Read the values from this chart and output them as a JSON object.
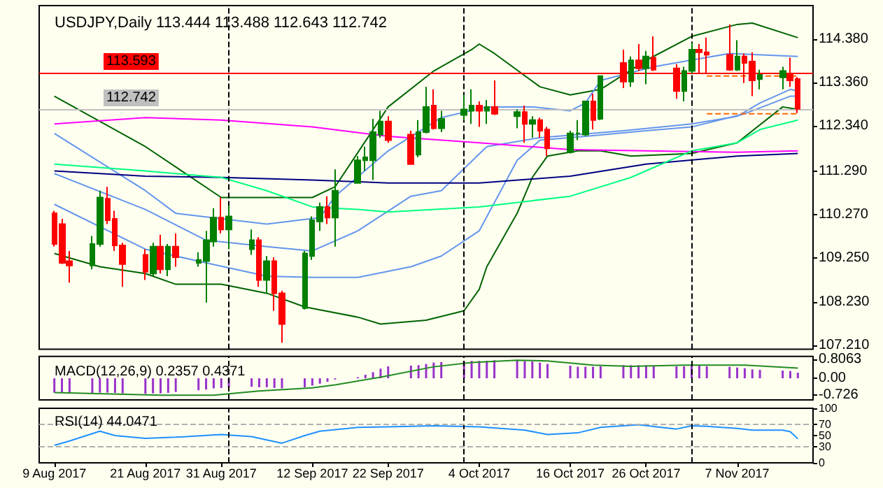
{
  "chart_data": [
    {
      "type": "candlestick",
      "title": "USDJPY,Daily 113.444 113.488 112.643 112.742",
      "x": [
        "2017-08-09",
        "2017-08-10",
        "2017-08-11",
        "2017-08-14",
        "2017-08-15",
        "2017-08-16",
        "2017-08-17",
        "2017-08-18",
        "2017-08-21",
        "2017-08-22",
        "2017-08-23",
        "2017-08-24",
        "2017-08-25",
        "2017-08-28",
        "2017-08-29",
        "2017-08-30",
        "2017-08-31",
        "2017-09-01",
        "2017-09-04",
        "2017-09-05",
        "2017-09-06",
        "2017-09-07",
        "2017-09-08",
        "2017-09-11",
        "2017-09-12",
        "2017-09-13",
        "2017-09-14",
        "2017-09-15",
        "2017-09-18",
        "2017-09-19",
        "2017-09-20",
        "2017-09-21",
        "2017-09-22",
        "2017-09-25",
        "2017-09-26",
        "2017-09-27",
        "2017-09-28",
        "2017-09-29",
        "2017-10-02",
        "2017-10-03",
        "2017-10-04",
        "2017-10-05",
        "2017-10-06",
        "2017-10-09",
        "2017-10-10",
        "2017-10-11",
        "2017-10-12",
        "2017-10-13",
        "2017-10-16",
        "2017-10-17",
        "2017-10-18",
        "2017-10-19",
        "2017-10-20",
        "2017-10-23",
        "2017-10-24",
        "2017-10-25",
        "2017-10-26",
        "2017-10-27",
        "2017-10-30",
        "2017-10-31",
        "2017-11-01",
        "2017-11-02",
        "2017-11-03",
        "2017-11-06",
        "2017-11-07",
        "2017-11-08",
        "2017-11-09",
        "2017-11-10",
        "2017-11-13",
        "2017-11-14",
        "2017-11-15"
      ],
      "ohlc": [
        [
          110.3,
          110.36,
          109.52,
          109.58
        ],
        [
          110.05,
          110.17,
          109.11,
          109.14
        ],
        [
          109.18,
          109.42,
          108.68,
          109.08
        ],
        [
          109.08,
          109.77,
          108.99,
          109.58
        ],
        [
          109.58,
          110.83,
          109.52,
          110.67
        ],
        [
          110.64,
          110.92,
          110.05,
          110.14
        ],
        [
          110.17,
          110.36,
          109.42,
          109.55
        ],
        [
          109.55,
          109.61,
          108.58,
          109.11
        ],
        [
          109.33,
          109.46,
          108.74,
          108.93
        ],
        [
          108.89,
          109.61,
          108.83,
          109.52
        ],
        [
          109.52,
          109.8,
          108.89,
          108.99
        ],
        [
          108.99,
          109.58,
          108.83,
          109.52
        ],
        [
          109.52,
          109.83,
          109.05,
          109.27
        ],
        [
          109.14,
          109.39,
          109.05,
          109.21
        ],
        [
          109.18,
          109.89,
          108.21,
          109.67
        ],
        [
          109.64,
          110.42,
          109.52,
          110.2
        ],
        [
          110.2,
          110.67,
          109.83,
          109.92
        ],
        [
          109.92,
          110.48,
          109.46,
          110.23
        ],
        [
          109.46,
          109.92,
          109.33,
          109.67
        ],
        [
          109.67,
          109.74,
          108.58,
          108.74
        ],
        [
          108.74,
          109.3,
          108.43,
          109.18
        ],
        [
          109.18,
          109.27,
          108.02,
          108.43
        ],
        [
          108.43,
          108.49,
          107.27,
          107.71
        ],
        [
          108.08,
          109.42,
          108.05,
          109.36
        ],
        [
          109.3,
          110.23,
          109.21,
          110.14
        ],
        [
          110.11,
          110.55,
          109.89,
          110.45
        ],
        [
          110.45,
          110.7,
          110.05,
          110.2
        ],
        [
          110.2,
          111.33,
          109.52,
          110.83
        ],
        [
          111.01,
          111.64,
          111.01,
          111.54
        ],
        [
          111.54,
          111.86,
          111.29,
          111.61
        ],
        [
          111.54,
          112.51,
          111.08,
          112.2
        ],
        [
          112.14,
          112.7,
          112.07,
          112.45
        ],
        [
          112.45,
          112.57,
          111.95,
          112.01
        ],
        [
          112.14,
          112.23,
          111.45,
          111.45
        ],
        [
          111.67,
          112.48,
          111.61,
          112.2
        ],
        [
          112.2,
          113.26,
          112.17,
          112.79
        ],
        [
          112.82,
          113.2,
          112.26,
          112.29
        ],
        [
          112.29,
          112.7,
          112.2,
          112.51
        ],
        [
          112.6,
          113.07,
          112.48,
          112.73
        ],
        [
          112.7,
          113.2,
          112.39,
          112.82
        ],
        [
          112.82,
          112.92,
          112.32,
          112.7
        ],
        [
          112.7,
          112.95,
          112.39,
          112.79
        ],
        [
          112.79,
          113.41,
          112.6,
          112.63
        ],
        [
          112.57,
          112.73,
          112.29,
          112.67
        ],
        [
          112.67,
          112.82,
          111.95,
          112.39
        ],
        [
          112.39,
          112.57,
          112.07,
          112.48
        ],
        [
          112.48,
          112.54,
          112.07,
          112.23
        ],
        [
          112.26,
          112.32,
          111.64,
          111.82
        ],
        [
          111.73,
          112.23,
          111.7,
          112.17
        ],
        [
          112.17,
          112.48,
          112.01,
          112.17
        ],
        [
          112.14,
          112.92,
          112.1,
          112.92
        ],
        [
          112.92,
          113.1,
          112.26,
          112.48
        ],
        [
          112.51,
          113.51,
          112.48,
          113.51
        ],
        [
          113.82,
          114.13,
          113.23,
          113.38
        ],
        [
          113.38,
          113.97,
          113.26,
          113.88
        ],
        [
          113.88,
          114.26,
          113.63,
          113.69
        ],
        [
          113.69,
          114.1,
          113.32,
          113.97
        ],
        [
          113.94,
          114.44,
          113.63,
          113.66
        ],
        [
          113.69,
          113.79,
          112.98,
          113.16
        ],
        [
          113.16,
          113.73,
          112.92,
          113.63
        ],
        [
          113.63,
          114.29,
          113.57,
          114.13
        ],
        [
          114.13,
          114.26,
          113.57,
          114.07
        ],
        [
          114.07,
          114.41,
          113.57,
          114.01
        ],
        [
          114.01,
          114.72,
          113.63,
          113.66
        ],
        [
          113.66,
          114.35,
          113.63,
          113.97
        ],
        [
          113.97,
          114.04,
          113.35,
          113.82
        ],
        [
          113.85,
          114.07,
          113.04,
          113.41
        ],
        [
          113.44,
          113.66,
          113.2,
          113.54
        ],
        [
          113.48,
          113.73,
          113.2,
          113.63
        ],
        [
          113.57,
          113.94,
          113.26,
          113.41
        ],
        [
          113.444,
          113.488,
          112.643,
          112.742
        ]
      ],
      "series": [
        {
          "type": "line",
          "color": "#006400",
          "x": [
            "2017-08-09",
            "2017-08-21",
            "2017-08-31",
            "2017-09-12",
            "2017-09-15",
            "2017-09-22",
            "2017-09-28",
            "2017-10-03",
            "2017-10-04",
            "2017-10-06",
            "2017-10-12",
            "2017-10-16",
            "2017-10-20",
            "2017-10-26",
            "2017-11-01",
            "2017-11-07",
            "2017-11-09",
            "2017-11-15"
          ],
          "values": [
            113.04,
            111.86,
            110.67,
            110.67,
            110.92,
            112.79,
            113.63,
            114.13,
            114.26,
            114.04,
            113.26,
            113.07,
            113.2,
            113.88,
            114.44,
            114.72,
            114.75,
            114.41
          ]
        },
        {
          "type": "line",
          "color": "#006400",
          "x": [
            "2017-08-09",
            "2017-08-15",
            "2017-08-21",
            "2017-08-25",
            "2017-08-31",
            "2017-09-06",
            "2017-09-11",
            "2017-09-18",
            "2017-09-21",
            "2017-09-27",
            "2017-10-02",
            "2017-10-04",
            "2017-10-05",
            "2017-10-09",
            "2017-10-11",
            "2017-10-13",
            "2017-10-17",
            "2017-10-20",
            "2017-10-24",
            "2017-11-01",
            "2017-11-07",
            "2017-11-13",
            "2017-11-15"
          ],
          "values": [
            109.36,
            109.05,
            108.89,
            108.64,
            108.64,
            108.43,
            108.11,
            107.87,
            107.71,
            107.8,
            108.02,
            108.52,
            109.05,
            110.3,
            111.14,
            111.64,
            111.76,
            111.76,
            111.64,
            111.7,
            111.95,
            112.79,
            112.73
          ]
        },
        {
          "type": "line",
          "color": "#6495ed",
          "x": [
            "2017-08-09",
            "2017-08-21",
            "2017-08-25",
            "2017-09-06",
            "2017-09-13",
            "2017-09-15",
            "2017-09-22",
            "2017-09-29",
            "2017-10-05",
            "2017-10-11",
            "2017-10-16",
            "2017-10-18",
            "2017-10-20",
            "2017-10-27",
            "2017-11-06",
            "2017-11-15"
          ],
          "values": [
            112.17,
            110.83,
            110.3,
            110.05,
            110.2,
            110.7,
            111.76,
            112.54,
            112.79,
            112.79,
            112.7,
            112.88,
            113.41,
            113.73,
            114.04,
            113.97
          ]
        },
        {
          "type": "line",
          "color": "#6495ed",
          "x": [
            "2017-08-09",
            "2017-08-21",
            "2017-08-29",
            "2017-09-06",
            "2017-09-12",
            "2017-09-18",
            "2017-09-25",
            "2017-09-29",
            "2017-10-05",
            "2017-10-12",
            "2017-10-23",
            "2017-11-01",
            "2017-11-07",
            "2017-11-10",
            "2017-11-14",
            "2017-11-15"
          ],
          "values": [
            111.23,
            110.39,
            109.67,
            109.52,
            109.42,
            109.89,
            110.7,
            110.83,
            111.86,
            112.07,
            112.23,
            112.39,
            112.57,
            112.88,
            113.2,
            113.16
          ]
        },
        {
          "type": "line",
          "color": "#6495ed",
          "x": [
            "2017-08-09",
            "2017-08-21",
            "2017-08-29",
            "2017-09-06",
            "2017-09-12",
            "2017-09-18",
            "2017-09-25",
            "2017-09-29",
            "2017-10-04",
            "2017-10-09",
            "2017-10-12",
            "2017-10-18",
            "2017-10-26",
            "2017-11-01",
            "2017-11-08",
            "2017-11-14",
            "2017-11-15"
          ],
          "values": [
            110.51,
            109.46,
            109.14,
            108.83,
            108.8,
            108.8,
            109.05,
            109.3,
            109.89,
            111.54,
            112.01,
            112.1,
            112.23,
            112.32,
            112.63,
            113.04,
            113.04
          ]
        },
        {
          "type": "line",
          "color": "#ff00ff",
          "x": [
            "2017-08-09",
            "2017-08-21",
            "2017-08-31",
            "2017-09-12",
            "2017-09-22",
            "2017-10-04",
            "2017-10-16",
            "2017-10-26",
            "2017-11-07",
            "2017-11-15"
          ],
          "values": [
            112.39,
            112.54,
            112.48,
            112.32,
            112.1,
            111.95,
            111.79,
            111.76,
            111.73,
            111.76
          ]
        },
        {
          "type": "line",
          "color": "#000080",
          "x": [
            "2017-08-09",
            "2017-08-21",
            "2017-08-31",
            "2017-09-12",
            "2017-09-22",
            "2017-10-04",
            "2017-10-16",
            "2017-10-26",
            "2017-11-07",
            "2017-11-15"
          ],
          "values": [
            111.29,
            111.17,
            111.14,
            111.08,
            111.01,
            111.01,
            111.17,
            111.45,
            111.64,
            111.7
          ]
        },
        {
          "type": "line",
          "color": "#00ff7f",
          "x": [
            "2017-08-09",
            "2017-08-21",
            "2017-08-31",
            "2017-09-06",
            "2017-09-12",
            "2017-09-18",
            "2017-09-22",
            "2017-10-04",
            "2017-10-16",
            "2017-10-24",
            "2017-11-01",
            "2017-11-07",
            "2017-11-10",
            "2017-11-15"
          ],
          "values": [
            111.45,
            111.29,
            111.14,
            110.83,
            110.45,
            110.39,
            110.33,
            110.45,
            110.7,
            111.14,
            111.76,
            111.95,
            112.26,
            112.48
          ]
        },
        {
          "type": "line",
          "color": "#ff6600",
          "line_style": "dashed",
          "x": [
            "2017-11-03",
            "2017-11-15"
          ],
          "values": [
            113.51,
            113.51
          ]
        },
        {
          "type": "line",
          "color": "#ff6600",
          "line_style": "dashed",
          "x": [
            "2017-11-03",
            "2017-11-15"
          ],
          "values": [
            112.63,
            112.63
          ]
        }
      ],
      "xlim": [
        "2017-08-07",
        "2017-11-17"
      ],
      "ylim": [
        107.12,
        115.16
      ],
      "yticks": [
        {
          "value": 107.21,
          "label": "107.210"
        },
        {
          "value": 108.23,
          "label": "108.230"
        },
        {
          "value": 109.25,
          "label": "109.250"
        },
        {
          "value": 110.27,
          "label": "110.270"
        },
        {
          "value": 111.29,
          "label": "111.290"
        },
        {
          "value": 112.34,
          "label": "112.340"
        },
        {
          "value": 113.36,
          "label": "113.360"
        },
        {
          "value": 114.38,
          "label": "114.380"
        }
      ],
      "tick_labels": "y",
      "ref_lines": [
        {
          "axis": "x",
          "value": "2017-09-01",
          "color": "#000000",
          "line_style": "dashed"
        },
        {
          "axis": "x",
          "value": "2017-10-02",
          "color": "#000000",
          "line_style": "dashed"
        },
        {
          "axis": "x",
          "value": "2017-11-01",
          "color": "#000000",
          "line_style": "dashed"
        },
        {
          "axis": "y",
          "value": 113.593,
          "label": "113.593",
          "color": "#ff0000"
        },
        {
          "axis": "y",
          "value": 112.742,
          "label": "112.742",
          "color": "#c0c0c0"
        }
      ]
    },
    {
      "type": "bar",
      "title": "MACD(12,26,9) 0.2357 0.4371",
      "x": [
        "2017-08-09",
        "2017-08-10",
        "2017-08-11",
        "2017-08-14",
        "2017-08-15",
        "2017-08-16",
        "2017-08-17",
        "2017-08-18",
        "2017-08-21",
        "2017-08-22",
        "2017-08-23",
        "2017-08-24",
        "2017-08-25",
        "2017-08-28",
        "2017-08-29",
        "2017-08-30",
        "2017-08-31",
        "2017-09-01",
        "2017-09-04",
        "2017-09-05",
        "2017-09-06",
        "2017-09-07",
        "2017-09-08",
        "2017-09-11",
        "2017-09-12",
        "2017-09-13",
        "2017-09-14",
        "2017-09-15",
        "2017-09-18",
        "2017-09-19",
        "2017-09-20",
        "2017-09-21",
        "2017-09-22",
        "2017-09-25",
        "2017-09-26",
        "2017-09-27",
        "2017-09-28",
        "2017-09-29",
        "2017-10-02",
        "2017-10-03",
        "2017-10-04",
        "2017-10-05",
        "2017-10-06",
        "2017-10-09",
        "2017-10-10",
        "2017-10-11",
        "2017-10-12",
        "2017-10-13",
        "2017-10-16",
        "2017-10-17",
        "2017-10-18",
        "2017-10-19",
        "2017-10-20",
        "2017-10-23",
        "2017-10-24",
        "2017-10-25",
        "2017-10-26",
        "2017-10-27",
        "2017-10-30",
        "2017-10-31",
        "2017-11-01",
        "2017-11-02",
        "2017-11-03",
        "2017-11-06",
        "2017-11-07",
        "2017-11-08",
        "2017-11-09",
        "2017-11-10",
        "2017-11-13",
        "2017-11-14",
        "2017-11-15"
      ],
      "series": [
        {
          "color": "#9932cc",
          "values": [
            -0.61,
            -0.62,
            -0.64,
            -0.64,
            -0.61,
            -0.61,
            -0.62,
            -0.64,
            -0.66,
            -0.64,
            -0.64,
            -0.62,
            -0.58,
            -0.51,
            -0.48,
            -0.43,
            -0.41,
            -0.38,
            -0.36,
            -0.38,
            -0.38,
            -0.41,
            -0.43,
            -0.38,
            -0.31,
            -0.23,
            -0.15,
            -0.05,
            0.05,
            0.15,
            0.26,
            0.41,
            0.51,
            0.54,
            0.56,
            0.61,
            0.67,
            0.69,
            0.72,
            0.74,
            0.74,
            0.74,
            0.77,
            0.77,
            0.74,
            0.72,
            0.67,
            0.61,
            0.54,
            0.49,
            0.49,
            0.49,
            0.51,
            0.56,
            0.56,
            0.56,
            0.56,
            0.54,
            0.51,
            0.51,
            0.56,
            0.54,
            0.51,
            0.49,
            0.46,
            0.43,
            0.38,
            0.36,
            0.33,
            0.31,
            0.2357
          ]
        },
        {
          "type": "line",
          "color": "#228b22",
          "x": [
            "2017-08-09",
            "2017-08-23",
            "2017-08-30",
            "2017-09-05",
            "2017-09-12",
            "2017-09-15",
            "2017-09-21",
            "2017-09-28",
            "2017-10-03",
            "2017-10-09",
            "2017-10-13",
            "2017-10-19",
            "2017-10-24",
            "2017-10-31",
            "2017-11-08",
            "2017-11-15"
          ],
          "values": [
            -0.61,
            -0.72,
            -0.72,
            -0.54,
            -0.41,
            -0.28,
            0.05,
            0.49,
            0.67,
            0.77,
            0.74,
            0.56,
            0.51,
            0.56,
            0.56,
            0.4371
          ]
        }
      ],
      "xlim": [
        "2017-08-07",
        "2017-11-17"
      ],
      "ylim": [
        -0.92,
        0.93
      ],
      "yticks": [
        -0.726,
        {
          "value": 0,
          "label": "0.00"
        },
        0.8063
      ],
      "tick_labels": "y",
      "ref_lines": [
        {
          "axis": "x",
          "value": "2017-09-01",
          "color": "#000000",
          "line_style": "dashed"
        },
        {
          "axis": "x",
          "value": "2017-10-02",
          "color": "#000000",
          "line_style": "dashed"
        },
        {
          "axis": "x",
          "value": "2017-11-01",
          "color": "#000000",
          "line_style": "dashed"
        }
      ]
    },
    {
      "type": "line",
      "title": "RSI(14) 44.0471",
      "series": [
        {
          "color": "#1e90ff",
          "x": [
            "2017-08-09",
            "2017-08-11",
            "2017-08-15",
            "2017-08-17",
            "2017-08-21",
            "2017-08-25",
            "2017-08-31",
            "2017-09-04",
            "2017-09-06",
            "2017-09-08",
            "2017-09-11",
            "2017-09-13",
            "2017-09-18",
            "2017-09-22",
            "2017-09-28",
            "2017-10-04",
            "2017-10-10",
            "2017-10-13",
            "2017-10-17",
            "2017-10-20",
            "2017-10-25",
            "2017-10-30",
            "2017-11-01",
            "2017-11-03",
            "2017-11-07",
            "2017-11-09",
            "2017-11-13",
            "2017-11-14",
            "2017-11-15"
          ],
          "values": [
            32,
            40,
            58,
            50,
            45,
            47,
            52,
            48,
            42,
            36,
            50,
            58,
            65,
            66,
            68,
            66,
            60,
            52,
            55,
            65,
            70,
            62,
            68,
            67,
            63,
            60,
            60,
            57,
            44.0471
          ]
        }
      ],
      "xlim": [
        "2017-08-07",
        "2017-11-17"
      ],
      "ylim": [
        0,
        100
      ],
      "yticks": [
        0,
        30,
        50,
        70,
        100
      ],
      "xticks": [
        {
          "value": "2017-08-09",
          "label": "9 Aug 2017"
        },
        {
          "value": "2017-08-21",
          "label": "21 Aug 2017"
        },
        {
          "value": "2017-08-31",
          "label": "31 Aug 2017"
        },
        {
          "value": "2017-09-12",
          "label": "12 Sep 2017"
        },
        {
          "value": "2017-09-22",
          "label": "22 Sep 2017"
        },
        {
          "value": "2017-10-04",
          "label": "4 Oct 2017"
        },
        {
          "value": "2017-10-16",
          "label": "16 Oct 2017"
        },
        {
          "value": "2017-10-26",
          "label": "26 Oct 2017"
        },
        {
          "value": "2017-11-07",
          "label": "7 Nov 2017"
        }
      ],
      "ref_lines": [
        {
          "axis": "x",
          "value": "2017-09-01",
          "color": "#000000",
          "line_style": "dashed"
        },
        {
          "axis": "x",
          "value": "2017-10-02",
          "color": "#000000",
          "line_style": "dashed"
        },
        {
          "axis": "x",
          "value": "2017-11-01",
          "color": "#000000",
          "line_style": "dashed"
        },
        {
          "axis": "y",
          "value": 30,
          "color": "#b0b0b0",
          "line_style": "dashed"
        },
        {
          "axis": "y",
          "value": 70,
          "color": "#b0b0b0",
          "line_style": "dashed"
        }
      ]
    }
  ]
}
